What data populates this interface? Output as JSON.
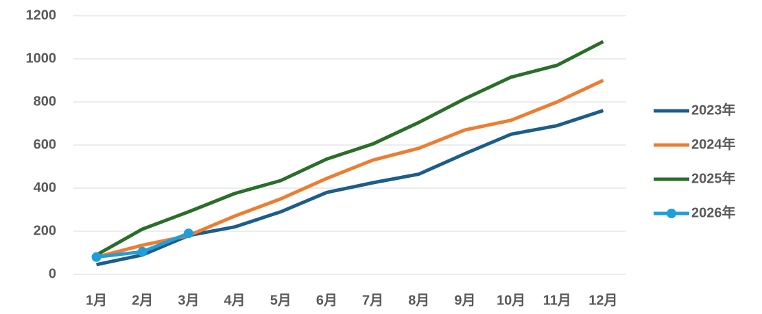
{
  "chart_data": {
    "type": "line",
    "categories": [
      "1月",
      "2月",
      "3月",
      "4月",
      "5月",
      "6月",
      "7月",
      "8月",
      "9月",
      "10月",
      "11月",
      "12月"
    ],
    "series": [
      {
        "name": "2023年",
        "color": "#1c5d89",
        "values": [
          45,
          90,
          180,
          220,
          290,
          380,
          425,
          465,
          560,
          650,
          690,
          760
        ]
      },
      {
        "name": "2024年",
        "color": "#ed7d31",
        "values": [
          80,
          135,
          180,
          270,
          350,
          445,
          530,
          585,
          670,
          715,
          800,
          900
        ]
      },
      {
        "name": "2025年",
        "color": "#2a6e2a",
        "values": [
          90,
          210,
          290,
          375,
          435,
          535,
          605,
          705,
          815,
          915,
          970,
          1080
        ]
      },
      {
        "name": "2026年",
        "color": "#1f9fda",
        "markers": true,
        "values": [
          80,
          105,
          190,
          null,
          null,
          null,
          null,
          null,
          null,
          null,
          null,
          null
        ]
      }
    ],
    "ylim": [
      0,
      1200
    ],
    "yticks": [
      0,
      200,
      400,
      600,
      800,
      1000,
      1200
    ],
    "grid": true,
    "legend": "right"
  }
}
